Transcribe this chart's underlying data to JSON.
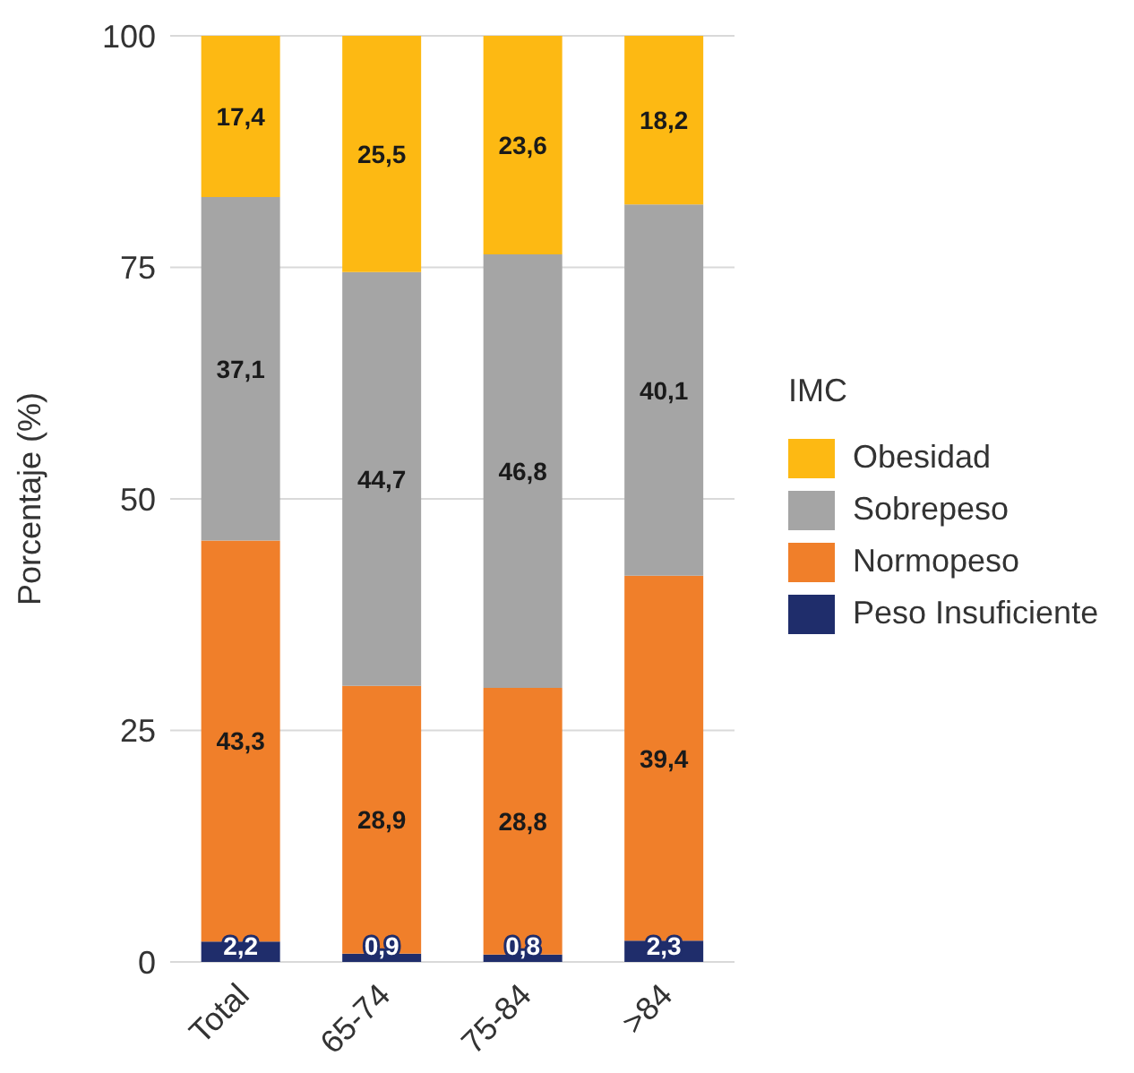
{
  "chart_data": {
    "type": "bar",
    "stacked": true,
    "ylabel": "Porcentaje (%)",
    "legend_title": "IMC",
    "legend": "right",
    "grid": "y",
    "ylim": [
      0,
      100
    ],
    "yticks": [
      0,
      25,
      50,
      75,
      100
    ],
    "categories": [
      "Total",
      "65-74",
      "75-84",
      ">84"
    ],
    "series": [
      {
        "name": "Peso Insuficiente",
        "color": "#1f2d6b",
        "values": [
          2.2,
          0.9,
          0.8,
          2.3
        ],
        "value_labels": [
          "2,2",
          "0,9",
          "0,8",
          "2,3"
        ]
      },
      {
        "name": "Normopeso",
        "color": "#f07f2a",
        "values": [
          43.3,
          28.9,
          28.8,
          39.4
        ],
        "value_labels": [
          "43,3",
          "28,9",
          "28,8",
          "39,4"
        ]
      },
      {
        "name": "Sobrepeso",
        "color": "#a5a5a5",
        "values": [
          37.1,
          44.7,
          46.8,
          40.1
        ],
        "value_labels": [
          "37,1",
          "44,7",
          "46,8",
          "40,1"
        ]
      },
      {
        "name": "Obesidad",
        "color": "#fdb913",
        "values": [
          17.4,
          25.5,
          23.6,
          18.2
        ],
        "value_labels": [
          "17,4",
          "25,5",
          "23,6",
          "18,2"
        ]
      }
    ]
  }
}
